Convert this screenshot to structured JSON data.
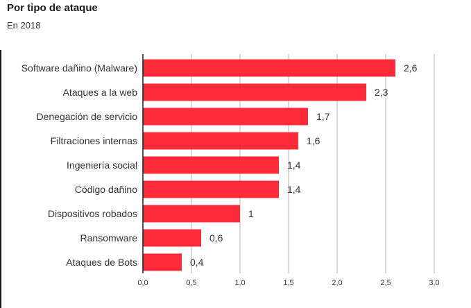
{
  "header": {
    "title": "Por tipo de ataque",
    "subtitle": "En 2018"
  },
  "colors": {
    "bar": "#fd2b39",
    "grid": "#b3b3b3",
    "axis": "#1a1a1a",
    "text": "#333333"
  },
  "chart_data": {
    "type": "bar",
    "orientation": "horizontal",
    "title": "Por tipo de ataque",
    "subtitle": "En 2018",
    "xlabel": "",
    "ylabel": "",
    "xlim": [
      0,
      3.0
    ],
    "grid": true,
    "categories": [
      "Software dañino (Malware)",
      "Ataques a la web",
      "Denegación de servicio",
      "Filtraciones internas",
      "Ingeniería social",
      "Código dañino",
      "Dispositivos robados",
      "Ransomware",
      "Ataques de Bots"
    ],
    "values": [
      2.6,
      2.3,
      1.7,
      1.6,
      1.4,
      1.4,
      1,
      0.6,
      0.4
    ],
    "value_labels": [
      "2,6",
      "2,3",
      "1,7",
      "1,6",
      "1,4",
      "1,4",
      "1",
      "0,6",
      "0,4"
    ],
    "ticks": [
      0,
      0.5,
      1.0,
      1.5,
      2.0,
      2.5,
      3.0
    ],
    "tick_labels": [
      "0,0",
      "0,5",
      "1,0",
      "1,5",
      "2,0",
      "2,5",
      "3,0"
    ]
  }
}
